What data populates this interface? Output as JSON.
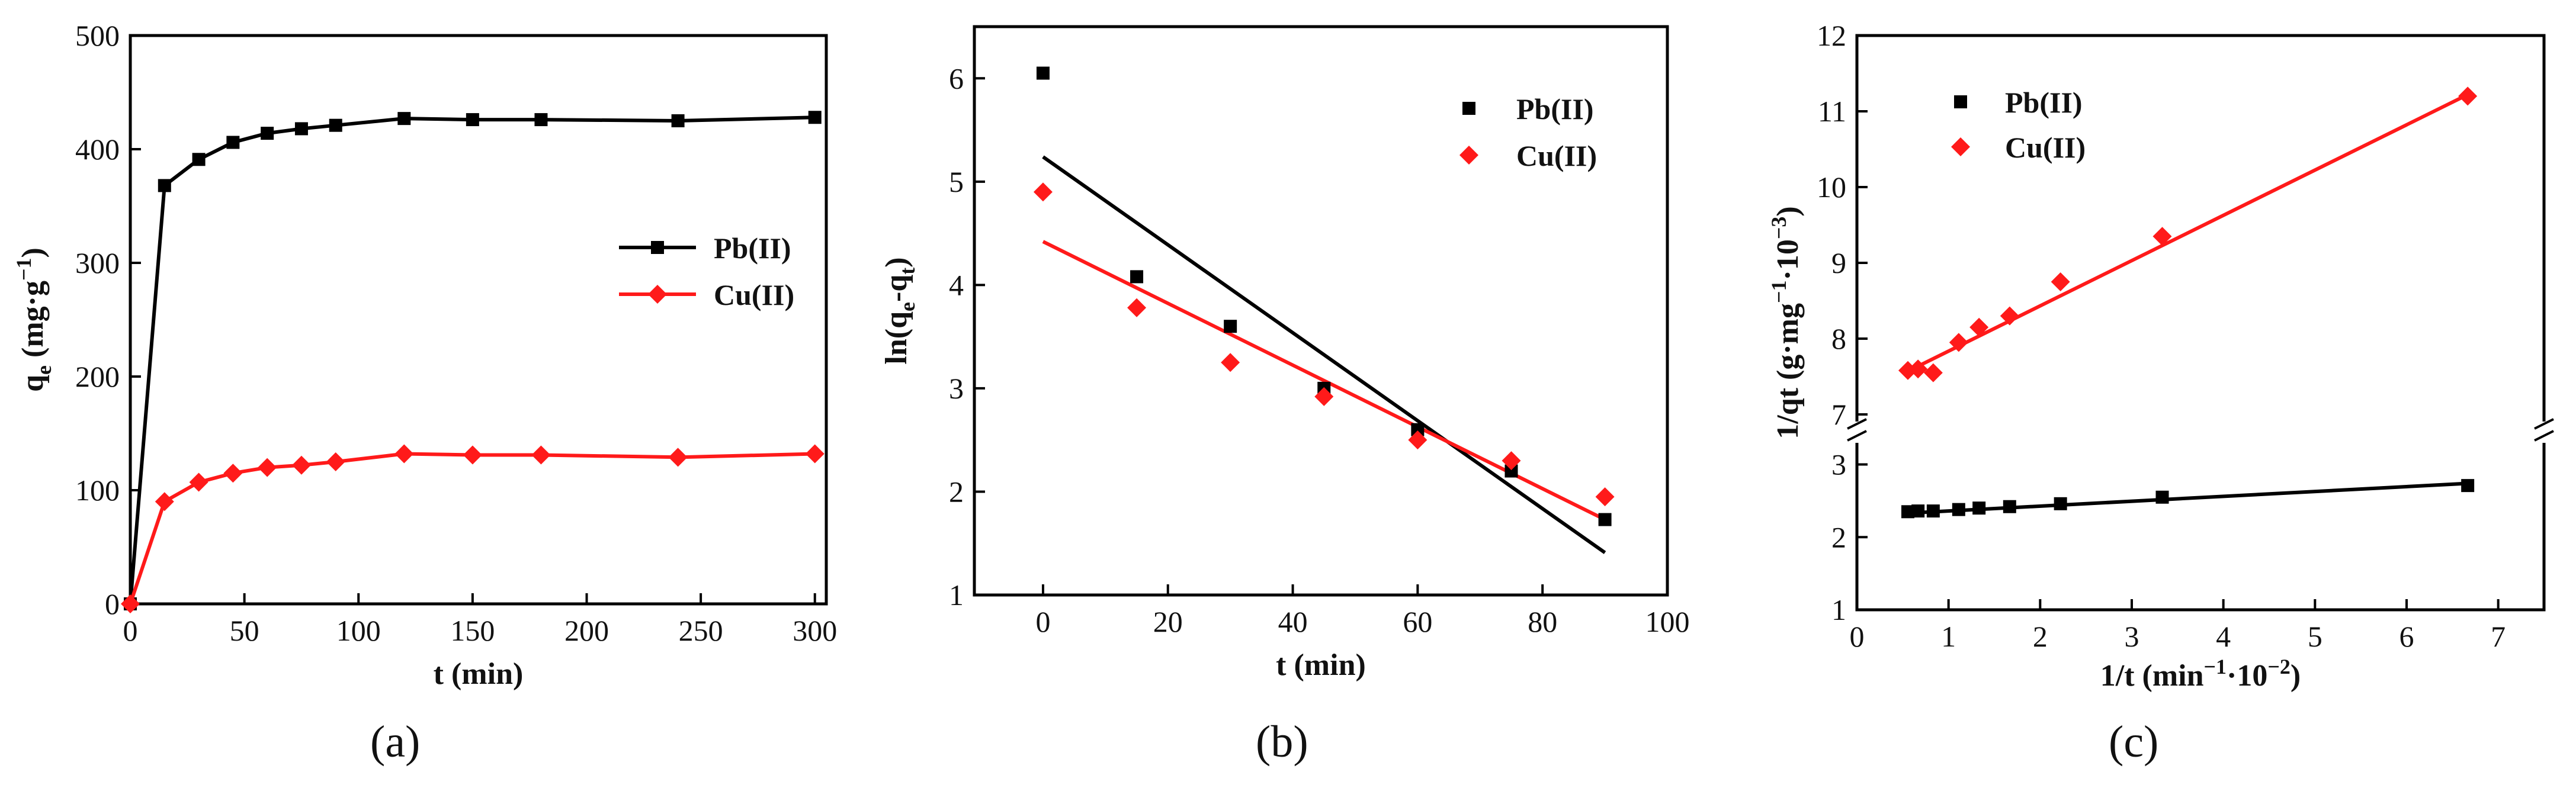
{
  "chart_data": [
    {
      "id": "a",
      "type": "line",
      "caption_letter": "a",
      "title": "",
      "xlabel": "t (min)",
      "ylabel_main": "q",
      "ylabel_sub": "e",
      "ylabel_unit": "(mg·g",
      "ylabel_exp": "−1",
      "ylabel_close": ")",
      "xlim": [
        0,
        305
      ],
      "ylim": [
        0,
        500
      ],
      "xticks": [
        0,
        50,
        100,
        150,
        200,
        250,
        300
      ],
      "yticks": [
        0,
        100,
        200,
        300,
        400,
        500
      ],
      "legend_position": "middle-right",
      "series": [
        {
          "name": "Pb(II)",
          "color": "#000000",
          "marker": "square",
          "x": [
            0,
            15,
            30,
            45,
            60,
            75,
            90,
            120,
            150,
            180,
            240,
            300
          ],
          "y": [
            0,
            368,
            391,
            406,
            414,
            418,
            421,
            427,
            426,
            426,
            425,
            428
          ]
        },
        {
          "name": "Cu(II)",
          "color": "#ff1a1a",
          "marker": "diamond",
          "x": [
            0,
            15,
            30,
            45,
            60,
            75,
            90,
            120,
            150,
            180,
            240,
            300
          ],
          "y": [
            0,
            90,
            107,
            115,
            120,
            122,
            125,
            132,
            131,
            131,
            129,
            132
          ]
        }
      ]
    },
    {
      "id": "b",
      "type": "scatter",
      "caption_letter": "b",
      "title": "",
      "xlabel": "t (min)",
      "ylabel_main": "ln(q",
      "ylabel_sub1": "e",
      "ylabel_mid": "-q",
      "ylabel_sub2": "t",
      "ylabel_close": ")",
      "xlim": [
        -11,
        100
      ],
      "ylim": [
        1,
        6.5
      ],
      "xticks": [
        0,
        20,
        40,
        60,
        80,
        100
      ],
      "yticks": [
        1,
        2,
        3,
        4,
        5,
        6
      ],
      "legend_position": "top-right",
      "series": [
        {
          "name": "Pb(II)",
          "color": "#000000",
          "marker": "square",
          "x": [
            0,
            15,
            30,
            45,
            60,
            75,
            90
          ],
          "y": [
            6.05,
            4.08,
            3.6,
            3.0,
            2.6,
            2.2,
            1.73
          ],
          "fit": {
            "x": [
              0,
              90
            ],
            "y": [
              5.24,
              1.41
            ]
          }
        },
        {
          "name": "Cu(II)",
          "color": "#ff1a1a",
          "marker": "diamond",
          "x": [
            0,
            15,
            30,
            45,
            60,
            75,
            90
          ],
          "y": [
            4.9,
            3.78,
            3.25,
            2.92,
            2.5,
            2.3,
            1.95
          ],
          "fit": {
            "x": [
              0,
              90
            ],
            "y": [
              4.42,
              1.73
            ]
          }
        }
      ]
    },
    {
      "id": "c",
      "type": "scatter",
      "caption_letter": "c",
      "title": "",
      "xlabel_main": "1/t (min",
      "xlabel_exp1": "−1",
      "xlabel_mid": "·10",
      "xlabel_exp2": "−2",
      "xlabel_close": ")",
      "ylabel_main": "1/qt (g·mg",
      "ylabel_exp1": "−1",
      "ylabel_mid": "·10",
      "ylabel_exp2": "−3",
      "ylabel_close": ")",
      "xlim": [
        0,
        7.5
      ],
      "ylim_lower": [
        1,
        3.2
      ],
      "ylim_upper": [
        7,
        12
      ],
      "axis_break": true,
      "xticks": [
        0,
        1,
        2,
        3,
        4,
        5,
        6,
        7
      ],
      "yticks_lower": [
        1,
        2,
        3
      ],
      "yticks_upper": [
        7,
        8,
        9,
        10,
        11,
        12
      ],
      "legend_position": "top-left",
      "series": [
        {
          "name": "Pb(II)",
          "color": "#000000",
          "marker": "square",
          "x": [
            0.556,
            0.667,
            0.833,
            1.111,
            1.333,
            1.667,
            2.222,
            3.333,
            6.667
          ],
          "y": [
            2.35,
            2.36,
            2.36,
            2.38,
            2.4,
            2.42,
            2.46,
            2.55,
            2.71
          ],
          "fit": {
            "x": [
              0.556,
              6.667
            ],
            "y": [
              2.33,
              2.74
            ]
          }
        },
        {
          "name": "Cu(II)",
          "color": "#ff1a1a",
          "marker": "diamond",
          "x": [
            0.556,
            0.667,
            0.833,
            1.111,
            1.333,
            1.667,
            2.222,
            3.333,
            6.667
          ],
          "y": [
            7.58,
            7.6,
            7.55,
            7.95,
            8.15,
            8.3,
            8.75,
            9.35,
            11.2
          ],
          "fit": {
            "x": [
              0.556,
              6.667
            ],
            "y": [
              7.57,
              11.22
            ]
          }
        }
      ]
    }
  ]
}
